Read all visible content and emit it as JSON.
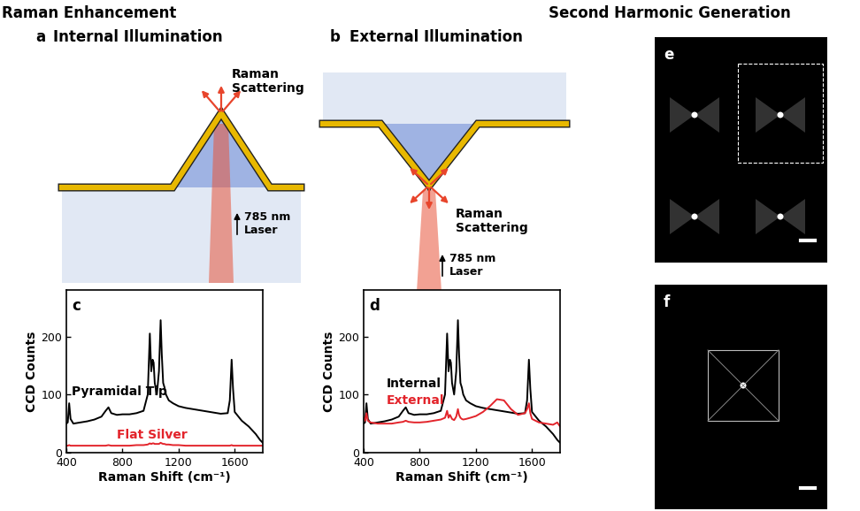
{
  "header": {
    "left": "Raman Enhancement",
    "right": "Second Harmonic Generation"
  },
  "diagrams": [
    {
      "letter": "a",
      "title": "Internal Illumination",
      "scattering": "Raman\nScattering",
      "laser": "785 nm\nLaser"
    },
    {
      "letter": "b",
      "title": "External Illumination",
      "scattering": "Raman\nScattering",
      "laser": "785 nm\nLaser"
    }
  ],
  "chart_data": [
    {
      "type": "line",
      "letter": "c",
      "xlabel": "Raman Shift (cm⁻¹)",
      "ylabel": "CCD Counts",
      "xlim": [
        400,
        1800
      ],
      "ylim": [
        0,
        280
      ],
      "xticks": [
        400,
        800,
        1200,
        1600
      ],
      "yticks": [
        0,
        100,
        200
      ],
      "x": [
        400,
        410,
        420,
        430,
        450,
        500,
        550,
        600,
        650,
        680,
        700,
        720,
        760,
        800,
        850,
        900,
        950,
        980,
        995,
        1005,
        1015,
        1022,
        1030,
        1045,
        1060,
        1072,
        1080,
        1090,
        1100,
        1110,
        1130,
        1160,
        1200,
        1250,
        1300,
        1350,
        1400,
        1450,
        1500,
        1550,
        1565,
        1578,
        1588,
        1600,
        1650,
        1700,
        1750,
        1780,
        1800
      ],
      "series": [
        {
          "name": "Pyramidal Tip",
          "color": "#000000",
          "values": [
            50,
            52,
            85,
            58,
            50,
            52,
            54,
            57,
            62,
            72,
            78,
            68,
            65,
            66,
            66,
            68,
            72,
            100,
            205,
            140,
            160,
            155,
            120,
            100,
            140,
            228,
            170,
            120,
            112,
            100,
            90,
            85,
            80,
            77,
            75,
            73,
            71,
            69,
            67,
            68,
            90,
            160,
            110,
            70,
            55,
            45,
            32,
            22,
            17
          ]
        },
        {
          "name": "Flat Silver",
          "color": "#e3242b",
          "values": [
            12,
            12,
            13,
            12,
            12,
            12,
            12,
            12,
            12,
            12,
            13,
            12,
            12,
            12,
            12,
            13,
            13,
            14,
            16,
            15,
            16,
            16,
            15,
            15,
            15,
            17,
            16,
            15,
            15,
            14,
            14,
            13,
            13,
            12,
            12,
            12,
            12,
            12,
            12,
            12,
            12,
            13,
            12,
            12,
            12,
            12,
            12,
            12,
            12
          ]
        }
      ]
    },
    {
      "type": "line",
      "letter": "d",
      "xlabel": "Raman Shift (cm⁻¹)",
      "ylabel": "CCD Counts",
      "xlim": [
        400,
        1800
      ],
      "ylim": [
        0,
        280
      ],
      "xticks": [
        400,
        800,
        1200,
        1600
      ],
      "yticks": [
        0,
        100,
        200
      ],
      "x": [
        400,
        410,
        420,
        430,
        450,
        500,
        550,
        600,
        650,
        680,
        700,
        720,
        760,
        800,
        850,
        900,
        950,
        980,
        995,
        1005,
        1015,
        1022,
        1030,
        1045,
        1060,
        1072,
        1080,
        1090,
        1100,
        1110,
        1130,
        1160,
        1200,
        1250,
        1300,
        1350,
        1400,
        1450,
        1500,
        1550,
        1565,
        1578,
        1588,
        1600,
        1650,
        1700,
        1750,
        1780,
        1800
      ],
      "series": [
        {
          "name": "Internal",
          "color": "#000000",
          "values": [
            50,
            52,
            85,
            58,
            50,
            52,
            54,
            57,
            62,
            72,
            78,
            68,
            65,
            66,
            66,
            68,
            72,
            100,
            205,
            140,
            160,
            155,
            120,
            100,
            140,
            228,
            170,
            120,
            112,
            100,
            90,
            85,
            80,
            77,
            75,
            73,
            71,
            69,
            67,
            68,
            90,
            160,
            110,
            70,
            55,
            45,
            32,
            22,
            17
          ]
        },
        {
          "name": "External",
          "color": "#e3242b",
          "values": [
            60,
            55,
            68,
            55,
            52,
            50,
            50,
            50,
            52,
            53,
            55,
            53,
            52,
            52,
            53,
            55,
            57,
            60,
            72,
            60,
            65,
            62,
            58,
            56,
            62,
            75,
            65,
            60,
            58,
            57,
            58,
            60,
            63,
            70,
            80,
            92,
            90,
            75,
            65,
            68,
            75,
            85,
            68,
            58,
            52,
            50,
            48,
            52,
            45
          ]
        }
      ]
    }
  ],
  "images": [
    {
      "letter": "e"
    },
    {
      "letter": "f"
    }
  ]
}
